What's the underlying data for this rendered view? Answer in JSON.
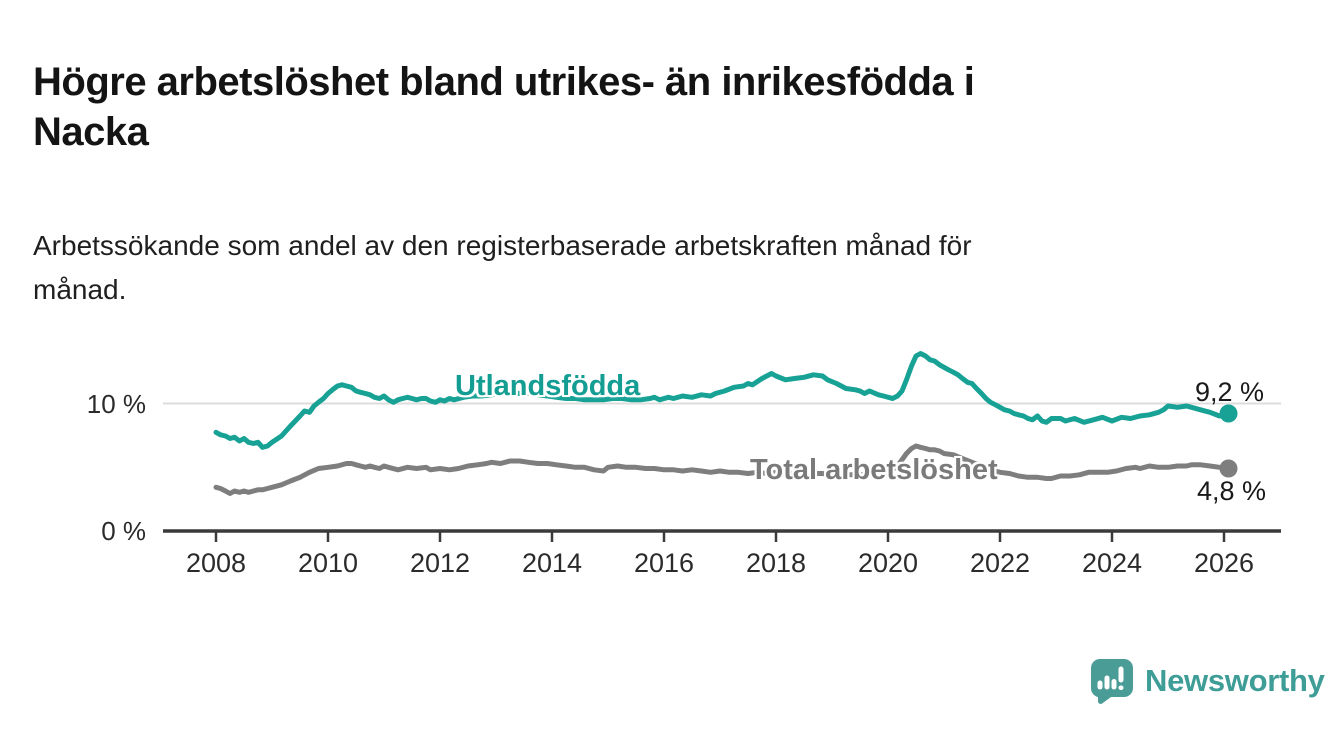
{
  "title": {
    "line1": "Högre arbetslöshet bland utrikes- än inrikesfödda i",
    "line2": "Nacka"
  },
  "subtitle": {
    "line1": "Arbetssökande som andel av den registerbaserade arbetskraften månad för",
    "line2": "månad."
  },
  "branding": {
    "logo_text": "Newsworthy",
    "logo_color": "#3f9d97"
  },
  "colors": {
    "series_foreign_born": "#17a295",
    "series_total": "#7e7e7e",
    "gridline": "#dcdcdc",
    "axis": "#3a3a3a",
    "text": "#1a1a1a"
  },
  "chart_data": {
    "type": "line",
    "title": "Högre arbetslöshet bland utrikes- än inrikesfödda i Nacka",
    "subtitle": "Arbetssökande som andel av den registerbaserade arbetskraften månad för månad.",
    "unit": "%",
    "grid": "single horizontal gridline at 10 %",
    "legend_position": "inline labels on lines",
    "x_range": [
      2007.0,
      2027.0
    ],
    "y_range": [
      0,
      15.5
    ],
    "x_ticks": [
      2008,
      2010,
      2012,
      2014,
      2016,
      2018,
      2020,
      2022,
      2024,
      2026
    ],
    "y_ticks": [
      {
        "value": 0,
        "label": "0 %"
      },
      {
        "value": 10,
        "label": "10 %"
      }
    ],
    "series": [
      {
        "name": "Utlandsfödda",
        "color": "#17a295",
        "end_value": 9.2,
        "end_label": "9,2 %",
        "points": [
          [
            2008.0,
            7.7
          ],
          [
            2008.08,
            7.5
          ],
          [
            2008.17,
            7.4
          ],
          [
            2008.25,
            7.2
          ],
          [
            2008.33,
            7.3
          ],
          [
            2008.42,
            7.0
          ],
          [
            2008.5,
            7.2
          ],
          [
            2008.58,
            6.9
          ],
          [
            2008.67,
            6.8
          ],
          [
            2008.75,
            6.9
          ],
          [
            2008.83,
            6.5
          ],
          [
            2008.92,
            6.6
          ],
          [
            2009.0,
            6.9
          ],
          [
            2009.17,
            7.4
          ],
          [
            2009.33,
            8.2
          ],
          [
            2009.5,
            9.0
          ],
          [
            2009.58,
            9.4
          ],
          [
            2009.67,
            9.3
          ],
          [
            2009.75,
            9.8
          ],
          [
            2009.83,
            10.1
          ],
          [
            2009.92,
            10.4
          ],
          [
            2010.0,
            10.8
          ],
          [
            2010.08,
            11.1
          ],
          [
            2010.17,
            11.4
          ],
          [
            2010.25,
            11.5
          ],
          [
            2010.33,
            11.4
          ],
          [
            2010.42,
            11.3
          ],
          [
            2010.5,
            11.0
          ],
          [
            2010.58,
            10.9
          ],
          [
            2010.67,
            10.8
          ],
          [
            2010.75,
            10.7
          ],
          [
            2010.83,
            10.5
          ],
          [
            2010.92,
            10.4
          ],
          [
            2011.0,
            10.6
          ],
          [
            2011.08,
            10.3
          ],
          [
            2011.17,
            10.1
          ],
          [
            2011.25,
            10.3
          ],
          [
            2011.33,
            10.4
          ],
          [
            2011.42,
            10.5
          ],
          [
            2011.5,
            10.4
          ],
          [
            2011.58,
            10.3
          ],
          [
            2011.67,
            10.4
          ],
          [
            2011.75,
            10.4
          ],
          [
            2011.83,
            10.2
          ],
          [
            2011.92,
            10.1
          ],
          [
            2012.0,
            10.3
          ],
          [
            2012.08,
            10.2
          ],
          [
            2012.17,
            10.4
          ],
          [
            2012.25,
            10.3
          ],
          [
            2012.42,
            10.5
          ],
          [
            2012.58,
            10.6
          ],
          [
            2012.75,
            10.6
          ],
          [
            2012.92,
            10.7
          ],
          [
            2013.08,
            10.8
          ],
          [
            2013.25,
            10.9
          ],
          [
            2013.42,
            10.8
          ],
          [
            2013.58,
            10.8
          ],
          [
            2013.75,
            10.7
          ],
          [
            2013.92,
            10.6
          ],
          [
            2014.08,
            10.5
          ],
          [
            2014.25,
            10.4
          ],
          [
            2014.42,
            10.4
          ],
          [
            2014.58,
            10.3
          ],
          [
            2014.75,
            10.3
          ],
          [
            2014.92,
            10.3
          ],
          [
            2015.08,
            10.4
          ],
          [
            2015.25,
            10.4
          ],
          [
            2015.42,
            10.3
          ],
          [
            2015.58,
            10.3
          ],
          [
            2015.75,
            10.4
          ],
          [
            2015.83,
            10.5
          ],
          [
            2015.92,
            10.3
          ],
          [
            2016.08,
            10.5
          ],
          [
            2016.17,
            10.4
          ],
          [
            2016.33,
            10.6
          ],
          [
            2016.5,
            10.5
          ],
          [
            2016.67,
            10.7
          ],
          [
            2016.83,
            10.6
          ],
          [
            2016.92,
            10.8
          ],
          [
            2017.08,
            11.0
          ],
          [
            2017.25,
            11.3
          ],
          [
            2017.42,
            11.4
          ],
          [
            2017.5,
            11.6
          ],
          [
            2017.58,
            11.5
          ],
          [
            2017.75,
            12.0
          ],
          [
            2017.92,
            12.4
          ],
          [
            2018.0,
            12.2
          ],
          [
            2018.17,
            11.9
          ],
          [
            2018.33,
            12.0
          ],
          [
            2018.5,
            12.1
          ],
          [
            2018.67,
            12.3
          ],
          [
            2018.83,
            12.2
          ],
          [
            2018.92,
            11.9
          ],
          [
            2019.08,
            11.6
          ],
          [
            2019.25,
            11.2
          ],
          [
            2019.42,
            11.1
          ],
          [
            2019.5,
            11.0
          ],
          [
            2019.58,
            10.8
          ],
          [
            2019.67,
            11.0
          ],
          [
            2019.83,
            10.7
          ],
          [
            2019.92,
            10.6
          ],
          [
            2020.08,
            10.4
          ],
          [
            2020.17,
            10.6
          ],
          [
            2020.25,
            11.0
          ],
          [
            2020.33,
            11.9
          ],
          [
            2020.42,
            13.0
          ],
          [
            2020.5,
            13.8
          ],
          [
            2020.58,
            14.0
          ],
          [
            2020.67,
            13.8
          ],
          [
            2020.75,
            13.5
          ],
          [
            2020.83,
            13.4
          ],
          [
            2020.92,
            13.1
          ],
          [
            2021.0,
            12.9
          ],
          [
            2021.08,
            12.7
          ],
          [
            2021.17,
            12.5
          ],
          [
            2021.25,
            12.3
          ],
          [
            2021.33,
            12.0
          ],
          [
            2021.42,
            11.7
          ],
          [
            2021.5,
            11.6
          ],
          [
            2021.58,
            11.2
          ],
          [
            2021.67,
            10.8
          ],
          [
            2021.75,
            10.4
          ],
          [
            2021.83,
            10.1
          ],
          [
            2021.92,
            9.9
          ],
          [
            2022.0,
            9.7
          ],
          [
            2022.08,
            9.5
          ],
          [
            2022.17,
            9.4
          ],
          [
            2022.25,
            9.2
          ],
          [
            2022.33,
            9.1
          ],
          [
            2022.42,
            9.0
          ],
          [
            2022.5,
            8.8
          ],
          [
            2022.58,
            8.7
          ],
          [
            2022.67,
            9.0
          ],
          [
            2022.75,
            8.6
          ],
          [
            2022.83,
            8.5
          ],
          [
            2022.92,
            8.8
          ],
          [
            2023.08,
            8.8
          ],
          [
            2023.17,
            8.6
          ],
          [
            2023.33,
            8.8
          ],
          [
            2023.5,
            8.5
          ],
          [
            2023.67,
            8.7
          ],
          [
            2023.83,
            8.9
          ],
          [
            2024.0,
            8.6
          ],
          [
            2024.17,
            8.9
          ],
          [
            2024.33,
            8.8
          ],
          [
            2024.5,
            9.0
          ],
          [
            2024.67,
            9.1
          ],
          [
            2024.83,
            9.3
          ],
          [
            2024.92,
            9.5
          ],
          [
            2025.0,
            9.8
          ],
          [
            2025.17,
            9.7
          ],
          [
            2025.33,
            9.8
          ],
          [
            2025.42,
            9.7
          ],
          [
            2025.58,
            9.5
          ],
          [
            2025.75,
            9.3
          ],
          [
            2025.92,
            9.0
          ],
          [
            2026.08,
            9.2
          ]
        ]
      },
      {
        "name": "Total arbetslöshet",
        "color": "#7e7e7e",
        "end_value": 4.8,
        "end_label": "4,8 %",
        "points": [
          [
            2008.0,
            3.3
          ],
          [
            2008.08,
            3.2
          ],
          [
            2008.17,
            3.0
          ],
          [
            2008.25,
            2.8
          ],
          [
            2008.33,
            3.0
          ],
          [
            2008.42,
            2.9
          ],
          [
            2008.5,
            3.0
          ],
          [
            2008.58,
            2.9
          ],
          [
            2008.67,
            3.0
          ],
          [
            2008.75,
            3.1
          ],
          [
            2008.83,
            3.1
          ],
          [
            2008.92,
            3.2
          ],
          [
            2009.0,
            3.3
          ],
          [
            2009.17,
            3.5
          ],
          [
            2009.33,
            3.8
          ],
          [
            2009.5,
            4.1
          ],
          [
            2009.67,
            4.5
          ],
          [
            2009.83,
            4.8
          ],
          [
            2010.0,
            4.9
          ],
          [
            2010.17,
            5.0
          ],
          [
            2010.33,
            5.2
          ],
          [
            2010.42,
            5.2
          ],
          [
            2010.5,
            5.1
          ],
          [
            2010.58,
            5.0
          ],
          [
            2010.67,
            4.9
          ],
          [
            2010.75,
            5.0
          ],
          [
            2010.83,
            4.9
          ],
          [
            2010.92,
            4.8
          ],
          [
            2011.0,
            5.0
          ],
          [
            2011.08,
            4.9
          ],
          [
            2011.25,
            4.7
          ],
          [
            2011.42,
            4.9
          ],
          [
            2011.58,
            4.8
          ],
          [
            2011.75,
            4.9
          ],
          [
            2011.83,
            4.7
          ],
          [
            2012.0,
            4.8
          ],
          [
            2012.17,
            4.7
          ],
          [
            2012.33,
            4.8
          ],
          [
            2012.5,
            5.0
          ],
          [
            2012.67,
            5.1
          ],
          [
            2012.83,
            5.2
          ],
          [
            2012.92,
            5.3
          ],
          [
            2013.08,
            5.2
          ],
          [
            2013.25,
            5.4
          ],
          [
            2013.42,
            5.4
          ],
          [
            2013.58,
            5.3
          ],
          [
            2013.75,
            5.2
          ],
          [
            2013.92,
            5.2
          ],
          [
            2014.08,
            5.1
          ],
          [
            2014.25,
            5.0
          ],
          [
            2014.42,
            4.9
          ],
          [
            2014.58,
            4.9
          ],
          [
            2014.75,
            4.7
          ],
          [
            2014.92,
            4.6
          ],
          [
            2015.0,
            4.9
          ],
          [
            2015.17,
            5.0
          ],
          [
            2015.33,
            4.9
          ],
          [
            2015.5,
            4.9
          ],
          [
            2015.67,
            4.8
          ],
          [
            2015.83,
            4.8
          ],
          [
            2016.0,
            4.7
          ],
          [
            2016.17,
            4.7
          ],
          [
            2016.33,
            4.6
          ],
          [
            2016.5,
            4.7
          ],
          [
            2016.67,
            4.6
          ],
          [
            2016.83,
            4.5
          ],
          [
            2017.0,
            4.6
          ],
          [
            2017.17,
            4.5
          ],
          [
            2017.33,
            4.5
          ],
          [
            2017.5,
            4.4
          ],
          [
            2017.67,
            4.5
          ],
          [
            2017.83,
            4.4
          ],
          [
            2018.0,
            4.5
          ],
          [
            2018.17,
            4.4
          ],
          [
            2018.33,
            4.4
          ],
          [
            2018.5,
            4.3
          ],
          [
            2018.67,
            4.4
          ],
          [
            2018.83,
            4.4
          ],
          [
            2019.0,
            4.3
          ],
          [
            2019.17,
            4.4
          ],
          [
            2019.33,
            4.3
          ],
          [
            2019.5,
            4.3
          ],
          [
            2019.67,
            4.4
          ],
          [
            2019.83,
            4.4
          ],
          [
            2020.0,
            4.5
          ],
          [
            2020.17,
            5.0
          ],
          [
            2020.33,
            6.0
          ],
          [
            2020.42,
            6.4
          ],
          [
            2020.5,
            6.6
          ],
          [
            2020.58,
            6.5
          ],
          [
            2020.67,
            6.4
          ],
          [
            2020.75,
            6.3
          ],
          [
            2020.83,
            6.3
          ],
          [
            2020.92,
            6.2
          ],
          [
            2021.0,
            6.0
          ],
          [
            2021.17,
            5.9
          ],
          [
            2021.33,
            5.6
          ],
          [
            2021.5,
            5.3
          ],
          [
            2021.67,
            5.0
          ],
          [
            2021.83,
            4.7
          ],
          [
            2022.0,
            4.5
          ],
          [
            2022.17,
            4.4
          ],
          [
            2022.33,
            4.2
          ],
          [
            2022.5,
            4.1
          ],
          [
            2022.67,
            4.1
          ],
          [
            2022.83,
            4.0
          ],
          [
            2022.92,
            4.0
          ],
          [
            2023.08,
            4.2
          ],
          [
            2023.25,
            4.2
          ],
          [
            2023.42,
            4.3
          ],
          [
            2023.58,
            4.5
          ],
          [
            2023.75,
            4.5
          ],
          [
            2023.92,
            4.5
          ],
          [
            2024.08,
            4.6
          ],
          [
            2024.25,
            4.8
          ],
          [
            2024.42,
            4.9
          ],
          [
            2024.5,
            4.8
          ],
          [
            2024.67,
            5.0
          ],
          [
            2024.83,
            4.9
          ],
          [
            2025.0,
            4.9
          ],
          [
            2025.17,
            5.0
          ],
          [
            2025.33,
            5.0
          ],
          [
            2025.42,
            5.1
          ],
          [
            2025.58,
            5.1
          ],
          [
            2025.75,
            5.0
          ],
          [
            2025.92,
            4.9
          ],
          [
            2026.08,
            4.8
          ]
        ]
      }
    ]
  }
}
